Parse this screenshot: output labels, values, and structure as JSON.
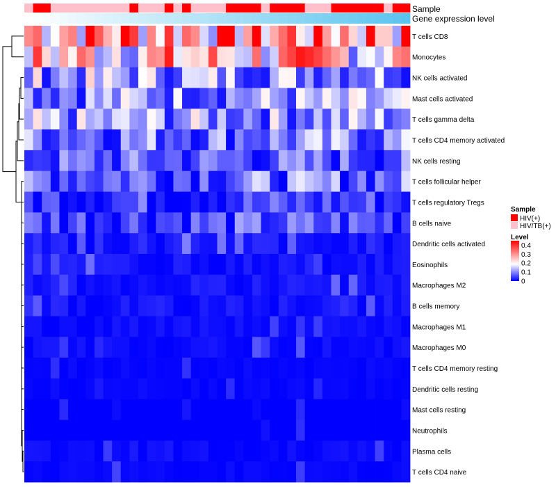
{
  "chart_data": {
    "type": "heatmap",
    "title": "",
    "colorscale": {
      "low": "#0000ff",
      "mid": "#ffffff",
      "high": "#ff0000",
      "mid_value": 0.2,
      "range": [
        0,
        0.45
      ]
    },
    "rows": [
      "T cells CD8",
      "Monocytes",
      "NK cells activated",
      "Mast cells activated",
      "T cells gamma delta",
      "T cells CD4 memory activated",
      "NK cells resting",
      "T cells follicular helper",
      "T cells regulatory  Tregs",
      "B cells naive",
      "Dendritic cells activated",
      "Eosinophils",
      "Macrophages M2",
      "B cells memory",
      "Macrophages M1",
      "Macrophages M0",
      "T cells CD4 memory resting",
      "Dendritic cells resting",
      "Mast cells resting",
      "Neutrophils",
      "Plasma cells",
      "T cells CD4 naive"
    ],
    "row_base_values": [
      0.32,
      0.25,
      0.13,
      0.12,
      0.12,
      0.1,
      0.07,
      0.09,
      0.05,
      0.06,
      0.04,
      0.03,
      0.03,
      0.03,
      0.02,
      0.02,
      0.01,
      0.01,
      0.0,
      0.0,
      0.02,
      0.01
    ],
    "column_count": 44,
    "annotations": {
      "sample": {
        "label": "Sample",
        "pattern": [
          2,
          1,
          1,
          2,
          2,
          2,
          2,
          2,
          2,
          2,
          2,
          2,
          1,
          2,
          2,
          2,
          1,
          2,
          1,
          2,
          2,
          2,
          2,
          1,
          1,
          1,
          1,
          2,
          1,
          1,
          1,
          1,
          2,
          2,
          2,
          1,
          1,
          1,
          1,
          1,
          1,
          2,
          1,
          1
        ]
      },
      "gene_expression": {
        "label": "Gene expression level",
        "from_color": "#ffffff",
        "to_color": "#5bc4ee"
      }
    },
    "legend": {
      "sample": {
        "title": "Sample",
        "items": [
          {
            "label": "HIV(+)",
            "color": "#ff0000"
          },
          {
            "label": "HIV/TB(+)",
            "color": "#ffc0cb"
          }
        ]
      },
      "level": {
        "title": "Level",
        "ticks": [
          {
            "label": "0.4",
            "value": 0.4
          },
          {
            "label": "0.3",
            "value": 0.3
          },
          {
            "label": "0.2",
            "value": 0.2
          },
          {
            "label": "0.1",
            "value": 0.1
          },
          {
            "label": "0",
            "value": 0
          }
        ]
      }
    },
    "dendrogram": "row clustering dendrogram on left side"
  }
}
